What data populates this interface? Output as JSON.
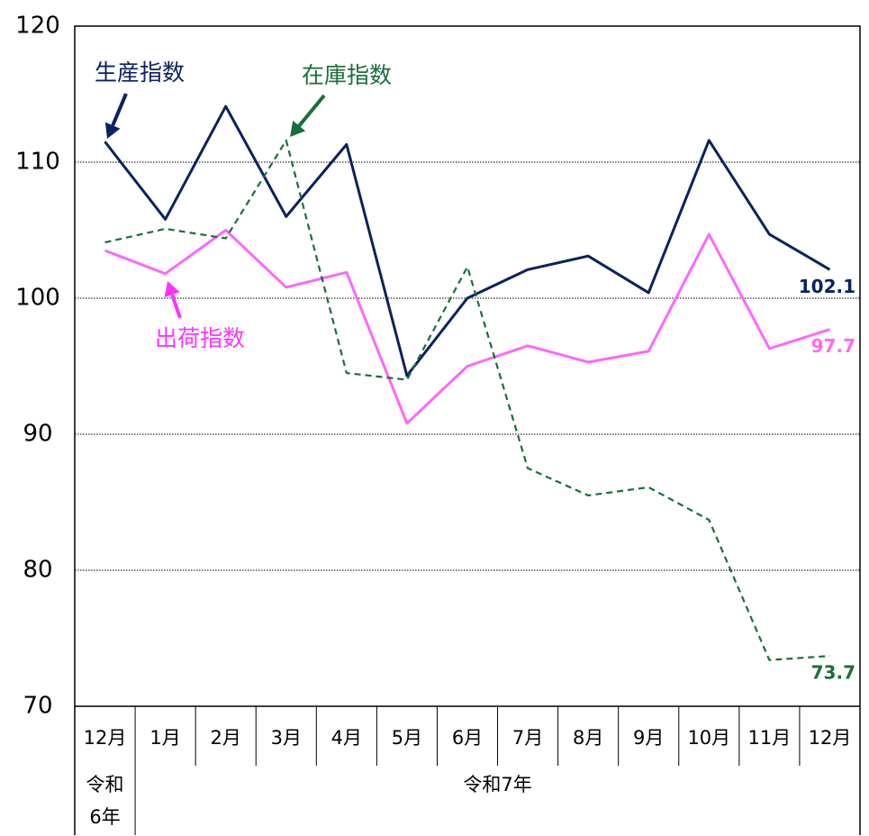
{
  "chart_data": {
    "type": "line",
    "categories": [
      "12月",
      "1月",
      "2月",
      "3月",
      "4月",
      "5月",
      "6月",
      "7月",
      "8月",
      "9月",
      "10月",
      "11月",
      "12月"
    ],
    "x_groups": [
      "令和6年",
      "令和7年"
    ],
    "series": [
      {
        "name": "生産指数",
        "color": "#0b2160",
        "dash": false,
        "values": [
          111.5,
          105.8,
          114.1,
          106.0,
          111.3,
          94.3,
          100.0,
          102.1,
          103.1,
          100.4,
          111.6,
          104.7,
          102.1
        ]
      },
      {
        "name": "出荷指数",
        "color": "#ff66ff",
        "dash": false,
        "values": [
          103.5,
          101.8,
          105.0,
          100.8,
          101.9,
          90.8,
          95.0,
          96.5,
          95.3,
          96.1,
          104.7,
          96.3,
          97.7
        ]
      },
      {
        "name": "在庫指数",
        "color": "#1a6e3a",
        "dash": true,
        "values": [
          104.1,
          105.1,
          104.4,
          111.6,
          94.5,
          94.0,
          102.3,
          87.5,
          85.5,
          86.1,
          83.7,
          73.4,
          73.7
        ]
      }
    ],
    "ylim": [
      70,
      120
    ],
    "yticks": [
      70,
      80,
      90,
      100,
      110,
      120
    ],
    "grid": true
  }
}
